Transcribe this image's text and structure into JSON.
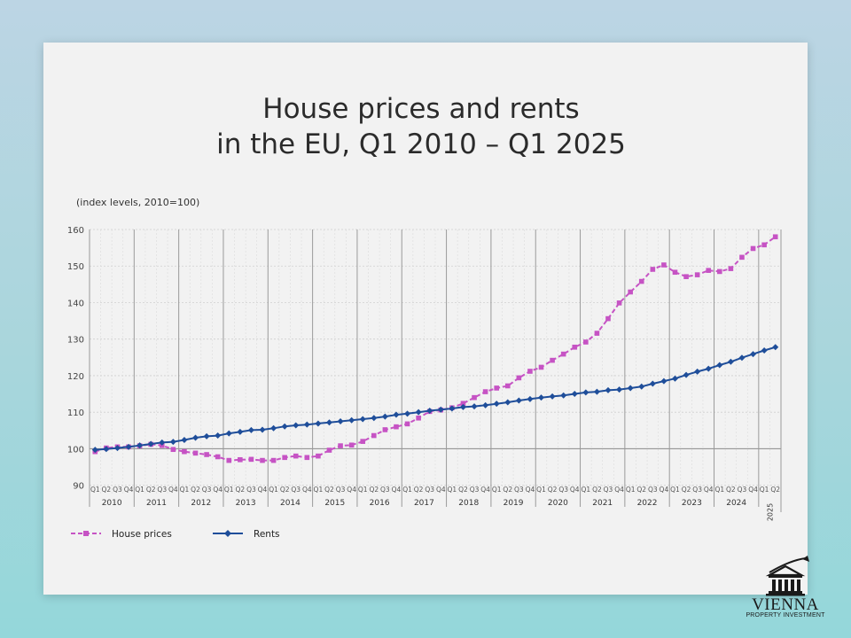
{
  "chart_data": {
    "type": "line",
    "title": [
      "House prices and rents",
      "in the EU, Q1 2010 – Q1 2025"
    ],
    "ylabel": "(index levels, 2010=100)",
    "xlabel": "",
    "ylim": [
      87,
      160
    ],
    "yticks": [
      90,
      100,
      110,
      120,
      130,
      140,
      150,
      160
    ],
    "reference_line": 100,
    "quarter_labels": [
      "Q1",
      "Q2",
      "Q3",
      "Q4"
    ],
    "years": [
      "2010",
      "2011",
      "2012",
      "2013",
      "2014",
      "2015",
      "2016",
      "2017",
      "2018",
      "2019",
      "2020",
      "2021",
      "2022",
      "2023",
      "2024",
      "2025"
    ],
    "grid": true,
    "legend_position": "bottom-left",
    "series": [
      {
        "name": "House prices",
        "color": "#c653c4",
        "style": "dashed",
        "marker": "square",
        "values": [
          99.2,
          100.2,
          100.5,
          100.5,
          100.8,
          101.2,
          100.9,
          99.8,
          99.2,
          98.8,
          98.4,
          97.8,
          96.8,
          97.0,
          97.1,
          96.8,
          96.8,
          97.6,
          98.0,
          97.6,
          98.0,
          99.6,
          100.8,
          101.0,
          102.0,
          103.6,
          105.2,
          106.0,
          106.8,
          108.4,
          110.2,
          110.6,
          111.2,
          112.4,
          114.0,
          115.6,
          116.6,
          117.2,
          119.4,
          121.2,
          122.3,
          124.2,
          125.9,
          127.8,
          129.2,
          131.6,
          135.6,
          139.9,
          142.9,
          145.8,
          149.1,
          150.3,
          148.3,
          147.1,
          147.6,
          148.8,
          148.5,
          149.3,
          152.4,
          154.8,
          155.8,
          158.0
        ]
      },
      {
        "name": "Rents",
        "color": "#1f4e9a",
        "style": "solid",
        "marker": "diamond",
        "values": [
          99.7,
          99.9,
          100.2,
          100.5,
          100.9,
          101.3,
          101.7,
          101.9,
          102.4,
          103.0,
          103.4,
          103.6,
          104.2,
          104.6,
          105.1,
          105.2,
          105.6,
          106.1,
          106.4,
          106.6,
          106.9,
          107.2,
          107.5,
          107.8,
          108.1,
          108.4,
          108.8,
          109.3,
          109.6,
          110.0,
          110.4,
          110.7,
          111.0,
          111.4,
          111.6,
          111.9,
          112.3,
          112.7,
          113.2,
          113.6,
          114.0,
          114.3,
          114.6,
          115.0,
          115.4,
          115.6,
          116.0,
          116.2,
          116.6,
          117.0,
          117.8,
          118.5,
          119.2,
          120.2,
          121.1,
          121.9,
          122.9,
          123.8,
          124.9,
          125.9,
          126.9,
          127.8
        ]
      }
    ]
  },
  "logo": {
    "name": "VIENNA",
    "subtitle": "PROPERTY INVESTMENT",
    "icon": "building-growth-icon"
  }
}
